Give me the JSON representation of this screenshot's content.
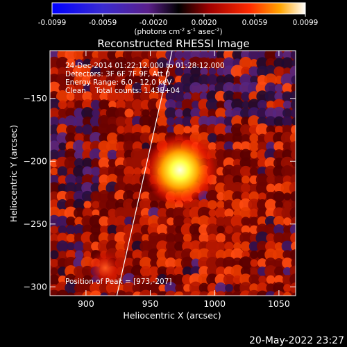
{
  "chart_data": {
    "type": "heatmap",
    "title": "Reconstructed RHESSI Image",
    "xlabel": "Heliocentric X (arcsec)",
    "ylabel": "Heliocentric Y (arcsec)",
    "xlim": [
      872,
      1063
    ],
    "ylim": [
      -307,
      -112
    ],
    "xticks": [
      900,
      950,
      1000,
      1050
    ],
    "yticks": [
      -150,
      -200,
      -250,
      -300
    ],
    "colorbar": {
      "range": [
        -0.0099,
        0.0099
      ],
      "ticks": [
        "-0.0099",
        "-0.0059",
        "-0.0020",
        "0.0020",
        "0.0059",
        "0.0099"
      ],
      "units": "(photons cm",
      "units_sup1": "-2",
      "units_mid": " s",
      "units_sup2": "-1",
      "units_mid2": " asec",
      "units_sup3": "-2",
      "units_end": ")"
    },
    "annotations": [
      "24-Dec-2014 01:22:12.000 to 01:28:12.000",
      "Detectors: 3F 6F 7F 9F, Att 0",
      "Energy Range: 6.0 - 12.0 keV",
      "Clean    Total counts: 1.43E+04"
    ],
    "peak_label": "Position of Peak = [973,-207]",
    "peak": {
      "x": 973,
      "y": -207
    },
    "secondary_source": {
      "x": 915,
      "y": -285
    },
    "limb_line": [
      [
        924,
        -307
      ],
      [
        967,
        -112
      ]
    ],
    "timestamp": "20-May-2022 23:27"
  }
}
